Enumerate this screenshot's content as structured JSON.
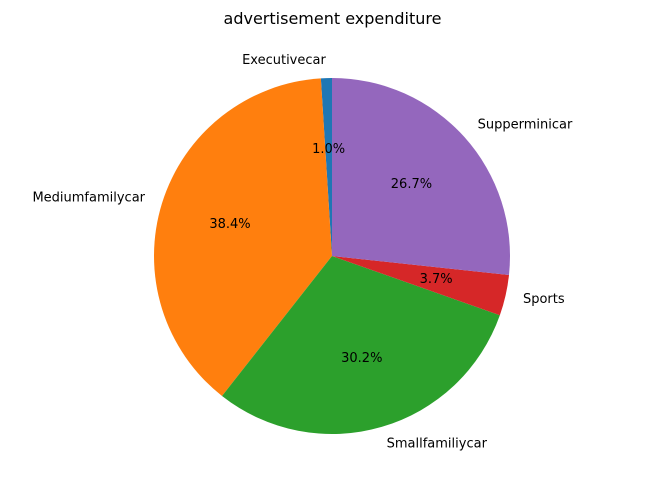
{
  "chart_data": {
    "type": "pie",
    "title": "advertisement expenditure",
    "start_angle_deg": 90,
    "direction": "counterclockwise",
    "autopct_format": "{v:.1f}%",
    "slices": [
      {
        "label": "Executivecar",
        "value": 1.0,
        "pct_text": "1.0%",
        "color": "#1f77b4"
      },
      {
        "label": "Mediumfamilycar",
        "value": 38.4,
        "pct_text": "38.4%",
        "color": "#ff7f0e"
      },
      {
        "label": "Smallfamiliycar",
        "value": 30.2,
        "pct_text": "30.2%",
        "color": "#2ca02c"
      },
      {
        "label": "Sports",
        "value": 3.7,
        "pct_text": "3.7%",
        "color": "#d62728"
      },
      {
        "label": "Supperminicar",
        "value": 26.7,
        "pct_text": "26.7%",
        "color": "#9467bd"
      }
    ]
  }
}
